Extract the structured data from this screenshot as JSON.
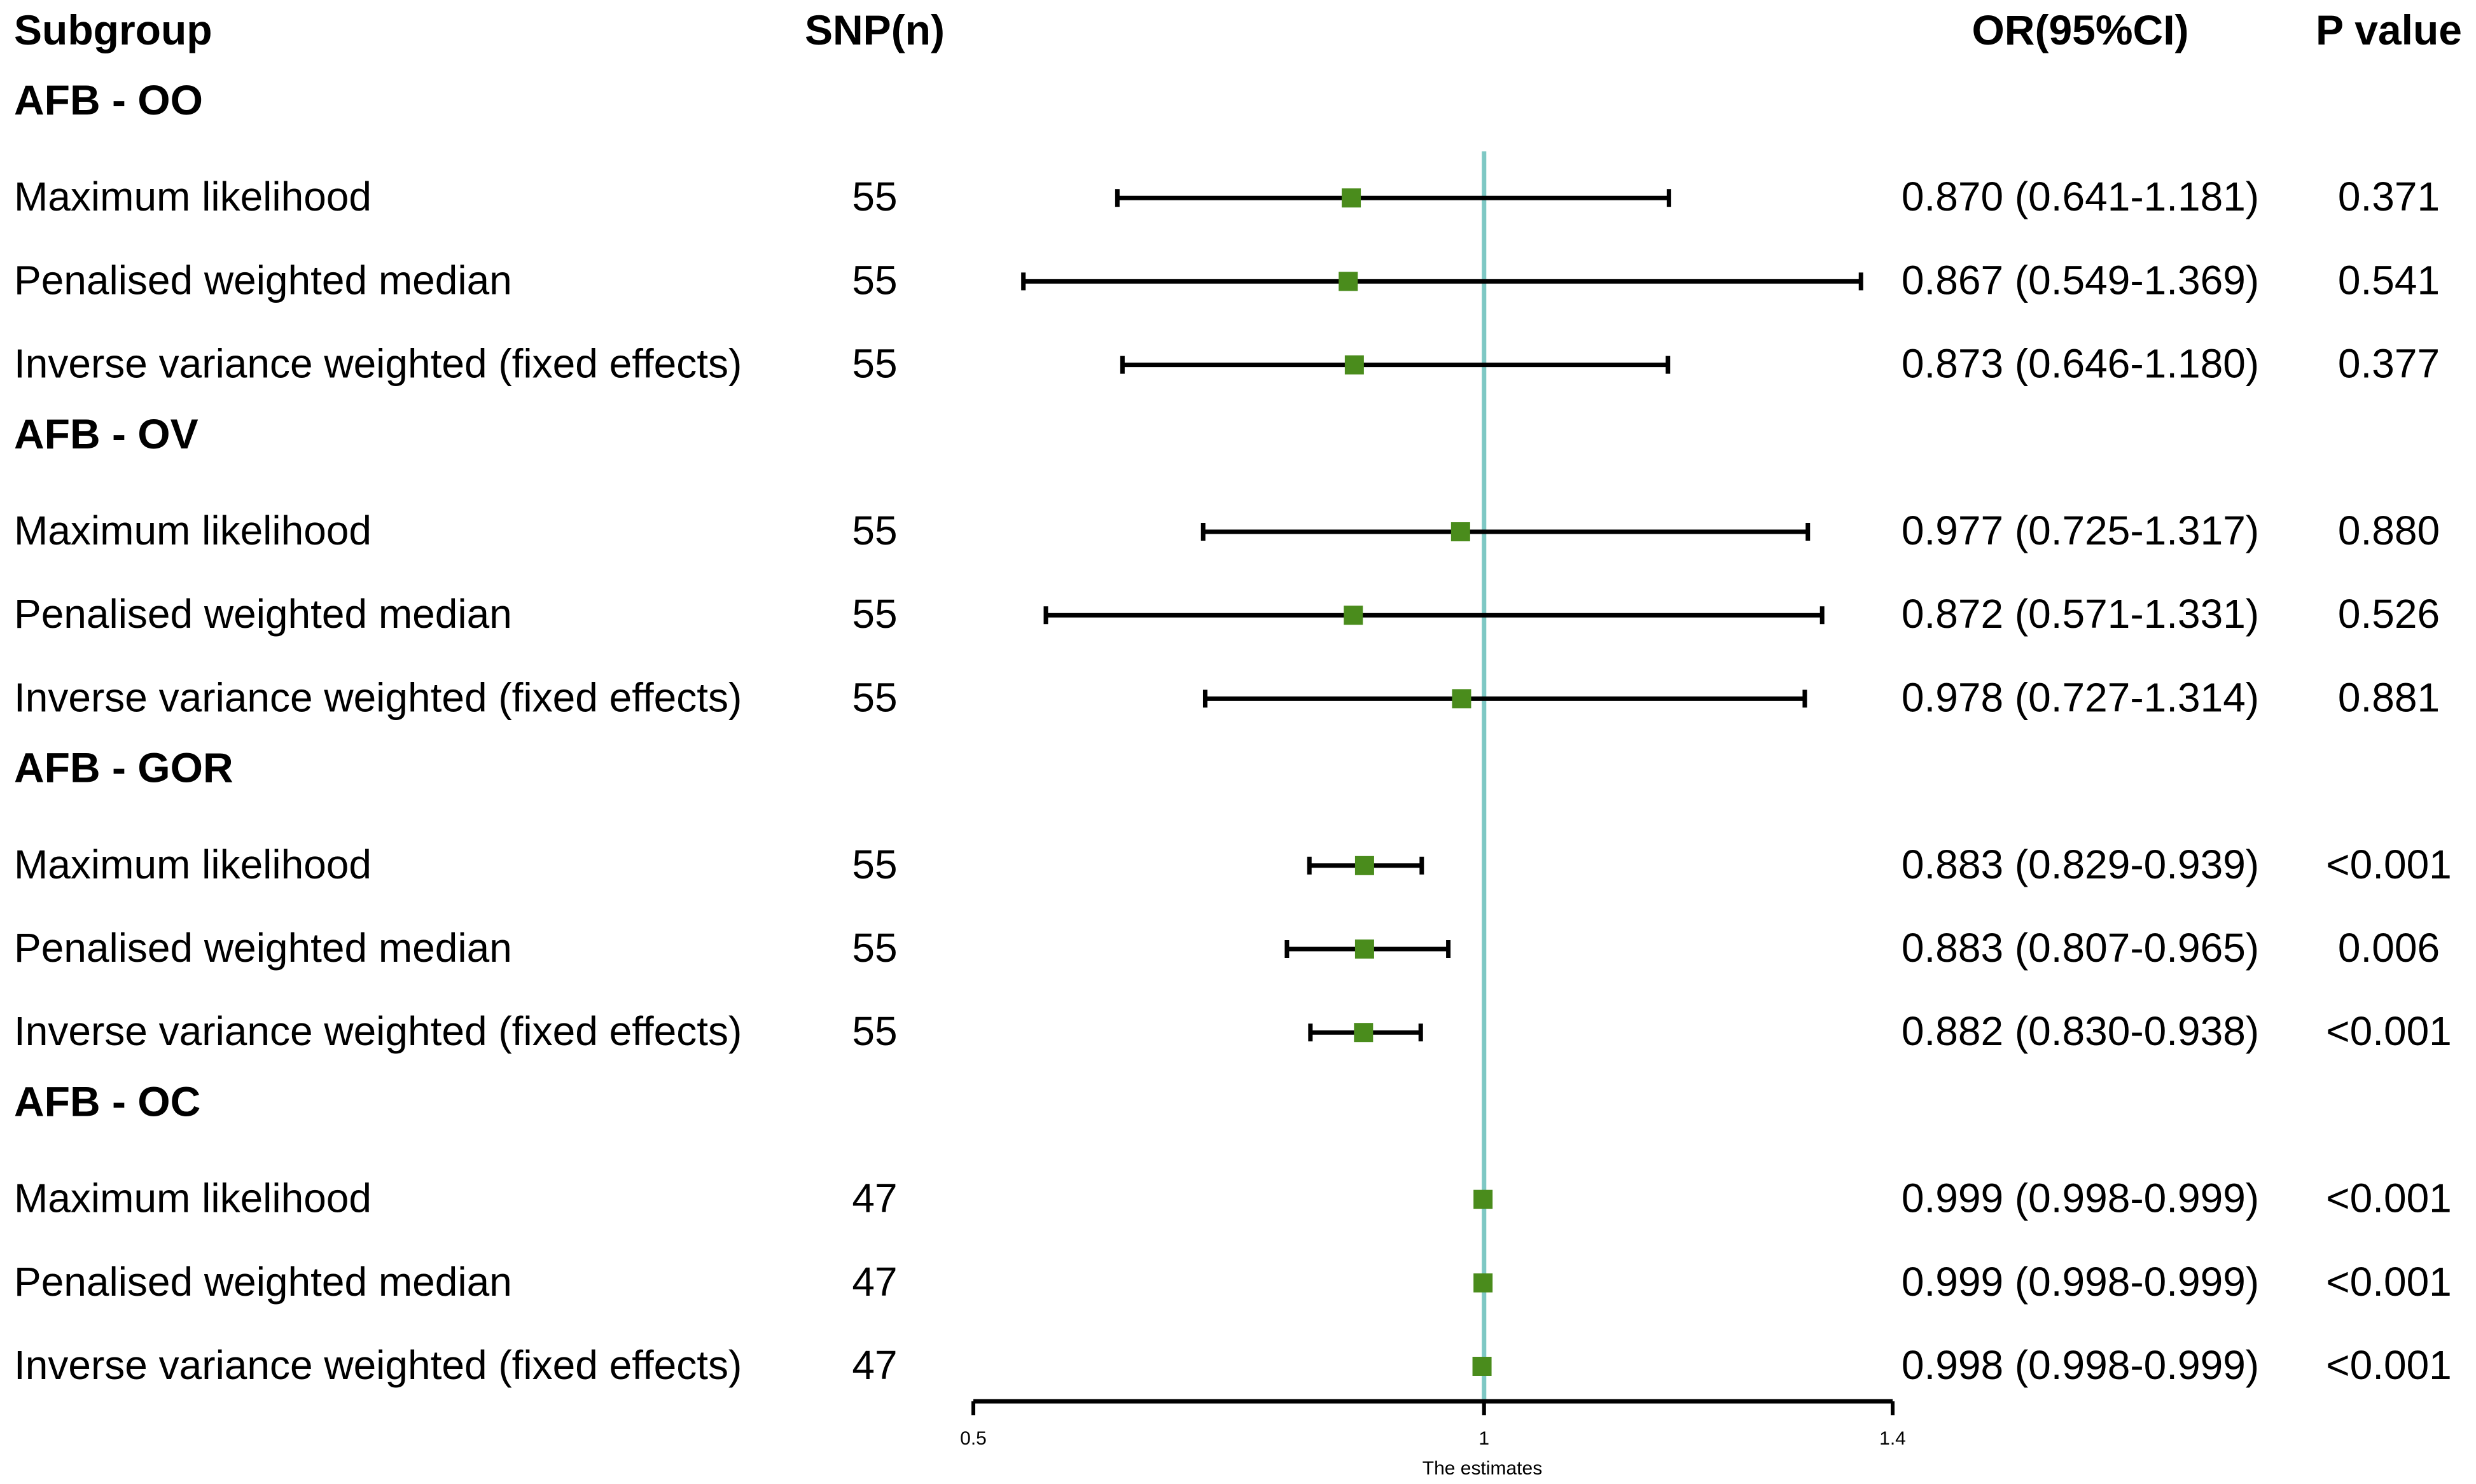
{
  "colors": {
    "reference_line": "#7ec8c4",
    "marker": "#4a8c1c",
    "whisker": "#000000"
  },
  "chart_data": {
    "type": "forest",
    "headers": {
      "subgroup": "Subgroup",
      "snp": "SNP(n)",
      "or": "OR(95%CI)",
      "p": "P value"
    },
    "xlabel": "The estimates",
    "xlim": [
      0.5,
      1.4
    ],
    "reference": 1,
    "ticks": [
      {
        "value": 0.5,
        "label": "0.5"
      },
      {
        "value": 1,
        "label": "1"
      },
      {
        "value": 1.4,
        "label": "1.4"
      }
    ],
    "groups": [
      {
        "name": "AFB - OO",
        "rows": [
          {
            "method": "Maximum likelihood",
            "snp": "55",
            "or": 0.87,
            "lo": 0.641,
            "hi": 1.181,
            "or_text": "0.870 (0.641-1.181)",
            "p": "0.371"
          },
          {
            "method": "Penalised weighted median",
            "snp": "55",
            "or": 0.867,
            "lo": 0.549,
            "hi": 1.369,
            "or_text": "0.867 (0.549-1.369)",
            "p": "0.541"
          },
          {
            "method": "Inverse variance weighted (fixed effects)",
            "snp": "55",
            "or": 0.873,
            "lo": 0.646,
            "hi": 1.18,
            "or_text": "0.873 (0.646-1.180)",
            "p": "0.377"
          }
        ]
      },
      {
        "name": "AFB - OV",
        "rows": [
          {
            "method": "Maximum likelihood",
            "snp": "55",
            "or": 0.977,
            "lo": 0.725,
            "hi": 1.317,
            "or_text": "0.977 (0.725-1.317)",
            "p": "0.880"
          },
          {
            "method": "Penalised weighted median",
            "snp": "55",
            "or": 0.872,
            "lo": 0.571,
            "hi": 1.331,
            "or_text": "0.872 (0.571-1.331)",
            "p": "0.526"
          },
          {
            "method": "Inverse variance weighted (fixed effects)",
            "snp": "55",
            "or": 0.978,
            "lo": 0.727,
            "hi": 1.314,
            "or_text": "0.978 (0.727-1.314)",
            "p": "0.881"
          }
        ]
      },
      {
        "name": "AFB - GOR",
        "rows": [
          {
            "method": "Maximum likelihood",
            "snp": "55",
            "or": 0.883,
            "lo": 0.829,
            "hi": 0.939,
            "or_text": "0.883 (0.829-0.939)",
            "p": "<0.001"
          },
          {
            "method": "Penalised weighted median",
            "snp": "55",
            "or": 0.883,
            "lo": 0.807,
            "hi": 0.965,
            "or_text": "0.883 (0.807-0.965)",
            "p": "0.006"
          },
          {
            "method": "Inverse variance weighted (fixed effects)",
            "snp": "55",
            "or": 0.882,
            "lo": 0.83,
            "hi": 0.938,
            "or_text": "0.882 (0.830-0.938)",
            "p": "<0.001"
          }
        ]
      },
      {
        "name": "AFB - OC",
        "rows": [
          {
            "method": "Maximum likelihood",
            "snp": "47",
            "or": 0.999,
            "lo": 0.998,
            "hi": 0.999,
            "or_text": "0.999 (0.998-0.999)",
            "p": "<0.001"
          },
          {
            "method": "Penalised weighted median",
            "snp": "47",
            "or": 0.999,
            "lo": 0.998,
            "hi": 0.999,
            "or_text": "0.999 (0.998-0.999)",
            "p": "<0.001"
          },
          {
            "method": "Inverse variance weighted (fixed effects)",
            "snp": "47",
            "or": 0.998,
            "lo": 0.998,
            "hi": 0.999,
            "or_text": "0.998 (0.998-0.999)",
            "p": "<0.001"
          }
        ]
      }
    ]
  }
}
